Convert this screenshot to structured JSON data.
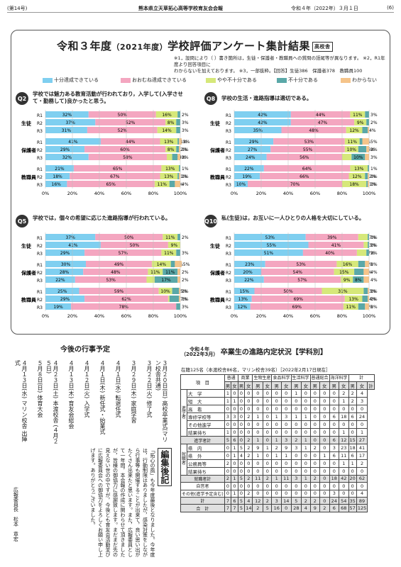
{
  "header": {
    "issue": "(第14号)",
    "paper": "熊本県立天草拓心高等学校育友会会報",
    "date": "令和４年（2022年）３月１日",
    "page": "(6)"
  },
  "survey": {
    "title_a": "令和３年度",
    "title_b": "（2021年度）",
    "title_c": "学校評価アンケート集計結果",
    "badge": "高校舎",
    "note1": "※1，設問により（ ）書き箇所は，生徒・保護者・教職員への質問の語尾等が異なります。 ※2，R1年度より回答項目に",
    "note2": "わからないを加えております。 ※3，一部抜粋。【回答】生徒386　保護者378　教職員100",
    "legend": [
      {
        "label": "十分達成できている",
        "color": "#7fcff0"
      },
      {
        "label": "おおむね達成できている",
        "color": "#f4a6c0"
      },
      {
        "label": "やや不十分である",
        "color": "#d6e87a"
      },
      {
        "label": "不十分である",
        "color": "#5aa8a8"
      },
      {
        "label": "わからない",
        "color": "#f5c48a"
      }
    ]
  },
  "chart_data": [
    {
      "type": "bar",
      "id": "Q2",
      "question": "学校では魅力ある教育活動が行われており，入学して(入学させて・勤務して)良かったと思う。",
      "groups": [
        {
          "name": "生徒",
          "rows": [
            {
              "label": "R1",
              "values": [
                32,
                50,
                16,
                2,
                0
              ]
            },
            {
              "label": "R2",
              "values": [
                37,
                52,
                8,
                3,
                0
              ]
            },
            {
              "label": "R3",
              "values": [
                31,
                52,
                14,
                3,
                0
              ]
            }
          ]
        },
        {
          "name": "保護者",
          "rows": [
            {
              "label": "R1",
              "values": [
                41,
                44,
                13,
                1,
                2
              ]
            },
            {
              "label": "R2",
              "values": [
                29,
                60,
                8,
                2,
                1
              ]
            },
            {
              "label": "R3",
              "values": [
                32,
                58,
                4,
                4,
                2
              ]
            }
          ]
        },
        {
          "name": "教職員",
          "rows": [
            {
              "label": "R1",
              "values": [
                21,
                65,
                13,
                1,
                0
              ]
            },
            {
              "label": "R2",
              "values": [
                18,
                67,
                13,
                1,
                1
              ]
            },
            {
              "label": "R3",
              "values": [
                16,
                65,
                11,
                4,
                4
              ]
            }
          ]
        }
      ],
      "labels": [
        [
          "32%",
          "50%",
          "16%",
          "2%"
        ],
        [
          "37%",
          "52%",
          "8%",
          "3%"
        ],
        [
          "31%",
          "52%",
          "14%",
          "3%"
        ],
        [
          "41%",
          "44%",
          "13%",
          "1%",
          "2%"
        ],
        [
          "29%",
          "60%",
          "8%",
          "2%",
          "1%"
        ],
        [
          "32%",
          "58%",
          "4%",
          "4%",
          "2%"
        ],
        [
          "21%",
          "65%",
          "13%",
          "1%"
        ],
        [
          "18%",
          "67%",
          "13%",
          "1%",
          "1%"
        ],
        [
          "16%",
          "65%",
          "11%",
          "4%",
          "4%"
        ]
      ],
      "xlim": [
        0,
        100
      ],
      "xticks": [
        "0%",
        "20%",
        "40%",
        "60%",
        "80%",
        "100%"
      ]
    },
    {
      "type": "bar",
      "id": "Q8",
      "question": "学校の生活・進路指導は適切である。",
      "groups": [
        {
          "name": "生徒",
          "rows": [
            {
              "label": "R1",
              "values": [
                42,
                44,
                11,
                3,
                0
              ]
            },
            {
              "label": "R2",
              "values": [
                42,
                47,
                9,
                2,
                0
              ]
            },
            {
              "label": "R3",
              "values": [
                35,
                48,
                12,
                4,
                1
              ]
            }
          ]
        },
        {
          "name": "保護者",
          "rows": [
            {
              "label": "R1",
              "values": [
                29,
                53,
                11,
                2,
                5
              ]
            },
            {
              "label": "R2",
              "values": [
                27,
                55,
                10,
                6,
                2
              ]
            },
            {
              "label": "R3",
              "values": [
                24,
                56,
                7,
                10,
                3
              ]
            }
          ]
        },
        {
          "name": "教職員",
          "rows": [
            {
              "label": "R1",
              "values": [
                22,
                64,
                13,
                1,
                0
              ]
            },
            {
              "label": "R2",
              "values": [
                19,
                66,
                12,
                2,
                1
              ]
            },
            {
              "label": "R3",
              "values": [
                10,
                70,
                18,
                1,
                1
              ]
            }
          ]
        }
      ],
      "labels": [
        [
          "42%",
          "44%",
          "11%",
          "3%"
        ],
        [
          "42%",
          "47%",
          "9%",
          "2%"
        ],
        [
          "35%",
          "48%",
          "12%",
          "4%"
        ],
        [
          "29%",
          "53%",
          "11%",
          "2%",
          "5%"
        ],
        [
          "27%",
          "55%",
          "10%",
          "6%",
          "2%"
        ],
        [
          "24%",
          "56%",
          "7%",
          "10%",
          "3%"
        ],
        [
          "22%",
          "64%",
          "13%",
          "1%"
        ],
        [
          "19%",
          "66%",
          "12%",
          "2%",
          "1%"
        ],
        [
          "10%",
          "70%",
          "18%",
          "1%",
          "1%"
        ]
      ],
      "xlim": [
        0,
        100
      ],
      "xticks": [
        "0%",
        "20%",
        "40%",
        "60%",
        "80%",
        "100%"
      ]
    },
    {
      "type": "bar",
      "id": "Q5",
      "question": "学校では，個々の希望に応じた進路指導が行われている。",
      "groups": [
        {
          "name": "生徒",
          "rows": [
            {
              "label": "R1",
              "values": [
                37,
                50,
                11,
                2,
                0
              ]
            },
            {
              "label": "R2",
              "values": [
                41,
                50,
                9,
                0,
                0
              ]
            },
            {
              "label": "R3",
              "values": [
                29,
                57,
                11,
                3,
                0
              ]
            }
          ]
        },
        {
          "name": "保護者",
          "rows": [
            {
              "label": "R1",
              "values": [
                30,
                49,
                14,
                3,
                5
              ]
            },
            {
              "label": "R2",
              "values": [
                28,
                48,
                11,
                11,
                2
              ]
            },
            {
              "label": "R3",
              "values": [
                22,
                53,
                6,
                17,
                2
              ]
            }
          ]
        },
        {
          "name": "教職員",
          "rows": [
            {
              "label": "R1",
              "values": [
                25,
                59,
                10,
                5,
                1
              ]
            },
            {
              "label": "R2",
              "values": [
                29,
                62,
                1,
                7,
                1
              ]
            },
            {
              "label": "R3",
              "values": [
                19,
                78,
                0,
                3,
                0
              ]
            }
          ]
        }
      ],
      "labels": [
        [
          "37%",
          "50%",
          "11%",
          "2%"
        ],
        [
          "41%",
          "50%",
          "9%"
        ],
        [
          "29%",
          "57%",
          "11%",
          "3%"
        ],
        [
          "30%",
          "49%",
          "14%",
          "3%",
          "5%"
        ],
        [
          "28%",
          "48%",
          "11%",
          "11%",
          "2%"
        ],
        [
          "22%",
          "53%",
          "6%",
          "17%",
          "2%"
        ],
        [
          "25%",
          "59%",
          "10%",
          "5%",
          "1%"
        ],
        [
          "29%",
          "62%",
          "1%",
          "7%",
          "1%"
        ],
        [
          "19%",
          "78%",
          "3%"
        ]
      ],
      "xlim": [
        0,
        100
      ],
      "xticks": [
        "0%",
        "20%",
        "40%",
        "60%",
        "80%",
        "100%"
      ]
    },
    {
      "type": "bar",
      "id": "Q10",
      "question": "私(生徒)は，お互いに一人ひとりの人格を大切にしている。",
      "groups": [
        {
          "name": "生徒",
          "rows": [
            {
              "label": "R1",
              "values": [
                53,
                39,
                7,
                1,
                0
              ]
            },
            {
              "label": "R2",
              "values": [
                55,
                41,
                3,
                1,
                0
              ]
            },
            {
              "label": "R3",
              "values": [
                51,
                40,
                7,
                2,
                0
              ]
            }
          ]
        },
        {
          "name": "保護者",
          "rows": [
            {
              "label": "R1",
              "values": [
                23,
                53,
                16,
                5,
                3
              ]
            },
            {
              "label": "R2",
              "values": [
                20,
                54,
                15,
                7,
                4
              ]
            },
            {
              "label": "R3",
              "values": [
                22,
                57,
                9,
                8,
                4
              ]
            }
          ]
        },
        {
          "name": "教職員",
          "rows": [
            {
              "label": "R1",
              "values": [
                15,
                50,
                31,
                3,
                1
              ]
            },
            {
              "label": "R2",
              "values": [
                13,
                69,
                13,
                4,
                1
              ]
            },
            {
              "label": "R3",
              "values": [
                12,
                69,
                11,
                5,
                3
              ]
            }
          ]
        }
      ],
      "labels": [
        [
          "53%",
          "39%",
          "7%",
          "1%"
        ],
        [
          "55%",
          "41%",
          "3%",
          "1%"
        ],
        [
          "51%",
          "40%",
          "7%",
          "2%"
        ],
        [
          "23%",
          "53%",
          "16%",
          "5%",
          "3%"
        ],
        [
          "20%",
          "54%",
          "15%",
          "7%",
          "4%"
        ],
        [
          "22%",
          "57%",
          "9%",
          "8%",
          "4%"
        ],
        [
          "15%",
          "50%",
          "31%",
          "3%",
          "1%"
        ],
        [
          "13%",
          "69%",
          "13%",
          "4%",
          "1%"
        ],
        [
          "12%",
          "69%",
          "11%",
          "5%",
          "3%"
        ]
      ],
      "xlim": [
        0,
        100
      ],
      "xticks": [
        "0%",
        "20%",
        "40%",
        "60%",
        "80%",
        "100%"
      ]
    }
  ],
  "events": {
    "title": "今後の行事予定",
    "items": [
      "３月２０日(日) 高校卒業式(マリン校舎共通)",
      "３月２２日(火) 修了式",
      "３月２９日(木) 家庭学習",
      "４月１日(水) 転退任式",
      "４月１日(木) 新任式・始業式",
      "４月１２日(火) 入学式",
      "４月１３日(木) 育友会総会",
      "４月２３日(土) 本渡校舎 (４月２５日)",
      "５月８日(日) 体育大会",
      "４月１３日(水) マリン校舎 出陣式"
    ]
  },
  "editor": {
    "title": "編集後記",
    "body": "「拓心の風」も今年度最後となりました。今年度は，行動制限はありましたが，感染対策をしながら行事等も開催することが出来て，良い思い出がたくさん出来たと思います。また，広報委員として一年間，本会報の作成に関わらせて頂きましたが，皆様の御協力に感謝致します。まだまだ先の見えない世の中ですが，今後とも育友会活動並びに広報委員会への御協力をよろしくお願い申し上げます。ありがとうございました。",
    "sign": "広報委員長　松本　章宏"
  },
  "career": {
    "title_a": "令和４年",
    "title_b": "（2022年3月）",
    "title_c": "卒業生の進路内定状況",
    "title_d": "【学科別】",
    "sub": "在籍125名（本渡校舎86名，マリン校舎39名）［2022年2月17日現在］",
    "head_item": "項　目",
    "courses": [
      "普通",
      "商業",
      "生物生産",
      "食品科学",
      "生活科学",
      "普通総合",
      "海洋科学",
      "計"
    ],
    "mf": [
      "男",
      "女"
    ],
    "rows": [
      {
        "grp": "進学者",
        "label": "大　学",
        "v": [
          "1",
          "0",
          "0",
          "0",
          "0",
          "0",
          "0",
          "0",
          "1",
          "0",
          "0",
          "0",
          "0",
          "2",
          "2",
          "4"
        ]
      },
      {
        "grp": "進学者",
        "label": "短　大",
        "v": [
          "1",
          "1",
          "0",
          "0",
          "0",
          "0",
          "0",
          "0",
          "0",
          "0",
          "0",
          "0",
          "0",
          "1",
          "2",
          "3"
        ]
      },
      {
        "grp": "進学者",
        "label": "高　看",
        "v": [
          "0",
          "0",
          "0",
          "0",
          "0",
          "0",
          "0",
          "0",
          "0",
          "0",
          "0",
          "0",
          "0",
          "0",
          "0",
          "0"
        ]
      },
      {
        "grp": "進学者",
        "label": "専修学校等",
        "v": [
          "3",
          "3",
          "0",
          "2",
          "1",
          "0",
          "1",
          "3",
          "1",
          "1",
          "0",
          "0",
          "6",
          "18",
          "6",
          "24"
        ]
      },
      {
        "grp": "進学者",
        "label": "その他進学",
        "v": [
          "0",
          "0",
          "0",
          "0",
          "0",
          "0",
          "0",
          "0",
          "0",
          "0",
          "0",
          "0",
          "0",
          "0",
          "0",
          "0"
        ]
      },
      {
        "grp": "進学者",
        "label": "結果待ち",
        "v": [
          "1",
          "0",
          "0",
          "0",
          "0",
          "0",
          "0",
          "0",
          "0",
          "0",
          "0",
          "0",
          "0",
          "1",
          "0",
          "1"
        ]
      },
      {
        "grp": "",
        "label": "進学者計",
        "v": [
          "5",
          "6",
          "0",
          "2",
          "1",
          "0",
          "1",
          "3",
          "2",
          "1",
          "0",
          "0",
          "6",
          "12",
          "15",
          "27"
        ]
      },
      {
        "grp": "就職者",
        "label": "県　内",
        "v": [
          "0",
          "1",
          "5",
          "2",
          "9",
          "1",
          "2",
          "9",
          "3",
          "1",
          "2",
          "0",
          "3",
          "23",
          "18",
          "41"
        ]
      },
      {
        "grp": "就職者",
        "label": "県　外",
        "v": [
          "0",
          "1",
          "4",
          "2",
          "1",
          "0",
          "1",
          "1",
          "0",
          "0",
          "0",
          "1",
          "6",
          "11",
          "6",
          "17"
        ]
      },
      {
        "grp": "就職者",
        "label": "公務員等",
        "v": [
          "2",
          "0",
          "0",
          "0",
          "0",
          "0",
          "0",
          "0",
          "0",
          "0",
          "0",
          "0",
          "0",
          "1",
          "1",
          "2"
        ]
      },
      {
        "grp": "就職者",
        "label": "結果待ち",
        "v": [
          "0",
          "0",
          "0",
          "0",
          "0",
          "0",
          "0",
          "0",
          "0",
          "0",
          "0",
          "0",
          "0",
          "0",
          "0",
          "0"
        ]
      },
      {
        "grp": "",
        "label": "就職者計",
        "v": [
          "2",
          "1",
          "5",
          "2",
          "11",
          "2",
          "1",
          "11",
          "3",
          "1",
          "2",
          "0",
          "18",
          "42",
          "20",
          "62"
        ]
      },
      {
        "grp": "",
        "label": "自営者",
        "v": [
          "0",
          "0",
          "0",
          "0",
          "0",
          "0",
          "0",
          "0",
          "0",
          "0",
          "0",
          "0",
          "0",
          "0",
          "0",
          "0"
        ]
      },
      {
        "grp": "",
        "label": "その他(進学予定含む)",
        "v": [
          "0",
          "1",
          "0",
          "2",
          "0",
          "0",
          "0",
          "0",
          "0",
          "0",
          "0",
          "0",
          "3",
          "0",
          "0",
          "4"
        ]
      },
      {
        "grp": "",
        "label": "計",
        "v": [
          "7",
          "6",
          "5",
          "4",
          "12",
          "2",
          "3",
          "14",
          "5",
          "2",
          "2",
          "0",
          "24",
          "54",
          "35",
          "89"
        ]
      },
      {
        "grp": "",
        "label": "合　計",
        "v": [
          "7",
          "7",
          "5",
          "14",
          "2",
          "5",
          "16",
          "0",
          "28",
          "4",
          "9",
          "2",
          "6",
          "68",
          "57",
          "125"
        ]
      }
    ]
  }
}
